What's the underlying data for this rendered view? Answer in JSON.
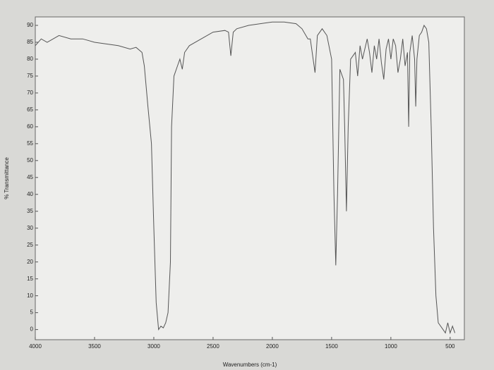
{
  "chart_data": {
    "type": "line",
    "x_label": "Wavenumbers (cm-1)",
    "y_label": "% Transmittance",
    "x": [
      4000,
      3950,
      3900,
      3800,
      3700,
      3600,
      3500,
      3400,
      3300,
      3200,
      3150,
      3100,
      3080,
      3050,
      3020,
      3000,
      2980,
      2960,
      2940,
      2920,
      2900,
      2880,
      2860,
      2850,
      2830,
      2800,
      2780,
      2760,
      2740,
      2700,
      2600,
      2500,
      2400,
      2370,
      2350,
      2330,
      2300,
      2200,
      2000,
      1900,
      1800,
      1750,
      1700,
      1680,
      1640,
      1620,
      1580,
      1540,
      1500,
      1480,
      1465,
      1450,
      1430,
      1400,
      1390,
      1375,
      1360,
      1340,
      1300,
      1280,
      1260,
      1240,
      1200,
      1180,
      1160,
      1140,
      1120,
      1100,
      1080,
      1060,
      1040,
      1020,
      1000,
      980,
      960,
      940,
      920,
      900,
      880,
      860,
      850,
      840,
      820,
      800,
      790,
      780,
      760,
      740,
      720,
      700,
      680,
      660,
      640,
      620,
      600,
      560,
      540,
      520,
      500,
      480,
      460
    ],
    "values": [
      84,
      86,
      85,
      87,
      86,
      86,
      85,
      84.5,
      84,
      83,
      83.5,
      82,
      78,
      66,
      55,
      30,
      8,
      0,
      1,
      0.5,
      2,
      5,
      20,
      60,
      75,
      78,
      80,
      77,
      82,
      84,
      86,
      88,
      88.5,
      88,
      81,
      88,
      89,
      90,
      91,
      91,
      90.5,
      89,
      86,
      86,
      76,
      87,
      89,
      87,
      80,
      40,
      19,
      40,
      77,
      74,
      60,
      35,
      60,
      80,
      82,
      75,
      84,
      80,
      86,
      82,
      76,
      84,
      80,
      86,
      79,
      74,
      83,
      86,
      80,
      86,
      84,
      76,
      80,
      86,
      78,
      82,
      60,
      82,
      87,
      80,
      66,
      80,
      87,
      88,
      90,
      89,
      85,
      60,
      30,
      10,
      2,
      0,
      -1,
      2,
      -1,
      1,
      -1
    ],
    "color": "#555555",
    "xlim": [
      4000,
      380
    ],
    "ylim": [
      -3,
      92.5
    ],
    "xticks": [
      4000,
      3500,
      3000,
      2500,
      2000,
      1500,
      1000,
      500
    ],
    "yticks": [
      0,
      5,
      10,
      15,
      20,
      25,
      30,
      35,
      40,
      45,
      50,
      55,
      60,
      65,
      70,
      75,
      80,
      85,
      90
    ]
  }
}
